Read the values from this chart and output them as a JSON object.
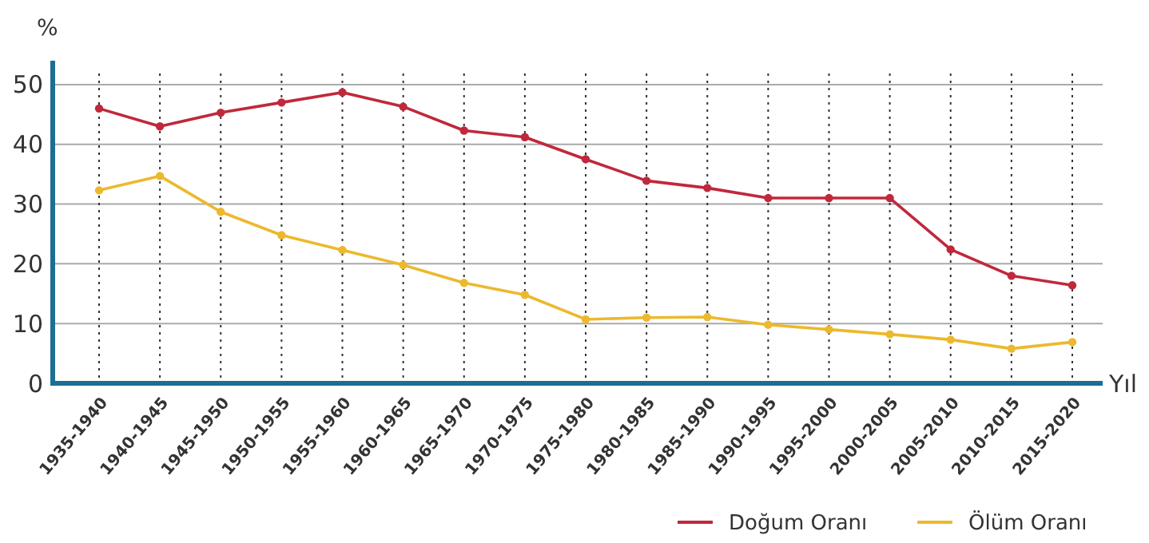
{
  "chart_data": {
    "type": "line",
    "ylabel": "%",
    "xlabel": "Yıl",
    "categories": [
      "1935-1940",
      "1940-1945",
      "1945-1950",
      "1950-1955",
      "1955-1960",
      "1960-1965",
      "1965-1970",
      "1970-1975",
      "1975-1980",
      "1980-1985",
      "1985-1990",
      "1990-1995",
      "1995-2000",
      "2000-2005",
      "2005-2010",
      "2010-2015",
      "2015-2020"
    ],
    "series": [
      {
        "name": "Doğum Oranı",
        "color": "#c0283c",
        "values": [
          46.0,
          43.0,
          45.3,
          47.0,
          48.7,
          46.3,
          42.3,
          41.2,
          37.5,
          33.9,
          32.7,
          31.0,
          31.0,
          31.0,
          22.4,
          18.0,
          16.4
        ]
      },
      {
        "name": "Ölüm Oranı",
        "color": "#ecb92e",
        "values": [
          32.3,
          34.7,
          28.7,
          24.8,
          22.3,
          19.8,
          16.8,
          14.8,
          10.7,
          11.0,
          11.1,
          9.8,
          9.0,
          8.2,
          7.3,
          5.8,
          6.9
        ]
      }
    ],
    "ylim": [
      0,
      54
    ],
    "yticks": [
      0,
      10,
      20,
      30,
      40,
      50
    ],
    "grid": true,
    "legend": "bottom right",
    "marker": "circle",
    "line_style": "solid"
  }
}
